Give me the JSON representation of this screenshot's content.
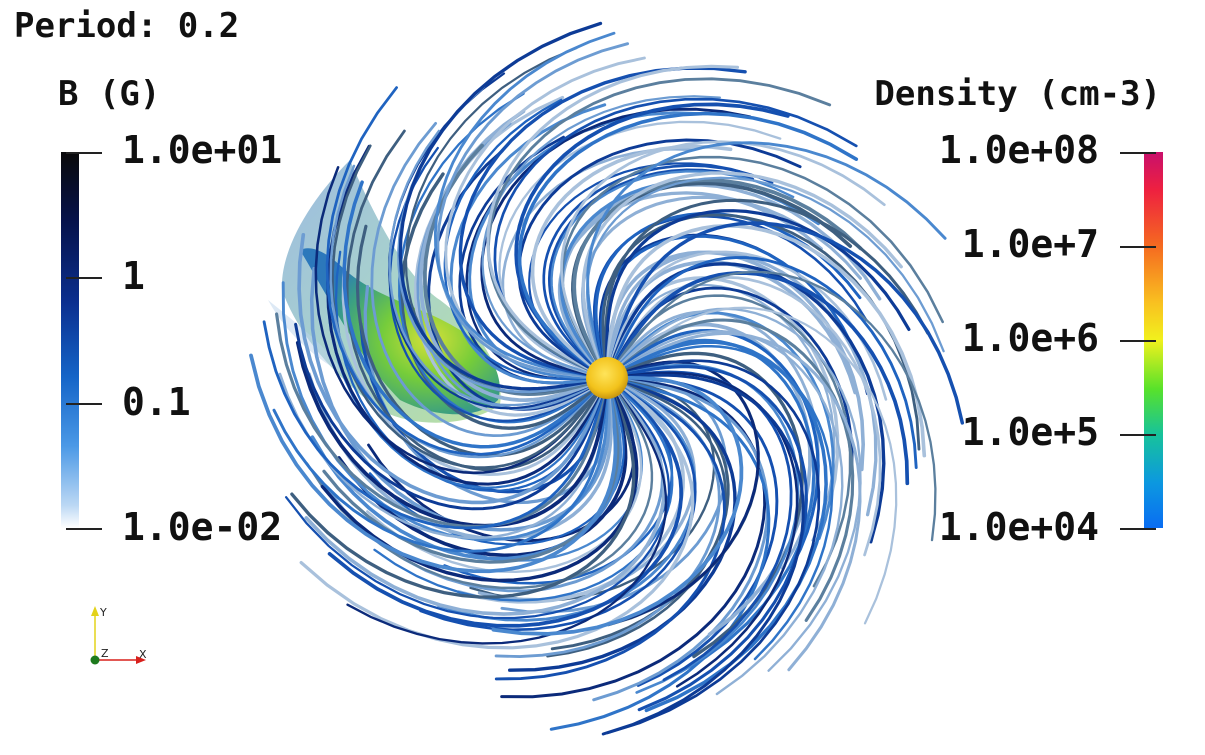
{
  "period_label": "Period: 0.2",
  "left_colorbar": {
    "title": "B (G)",
    "ticks": [
      "1.0e+01",
      "1",
      "0.1",
      "1.0e-02"
    ],
    "colors": [
      "#0a0a0a",
      "#06124a",
      "#0b2f8f",
      "#1565c8",
      "#4a98e6",
      "#bcd8f4",
      "#ffffff"
    ]
  },
  "right_colorbar": {
    "title": "Density (cm-3)",
    "ticks": [
      "1.0e+08",
      "1.0e+7",
      "1.0e+6",
      "1.0e+5",
      "1.0e+04"
    ],
    "colors": [
      "#c8106c",
      "#ee2040",
      "#f56a20",
      "#f9c020",
      "#f1f11d",
      "#58e22a",
      "#17c39a",
      "#0c98e0",
      "#0a6df2"
    ]
  },
  "axes": {
    "y": "Y",
    "z": "Z",
    "x": "X"
  },
  "star_color": "#f2c21b",
  "plasma_color": "#5fc82c"
}
